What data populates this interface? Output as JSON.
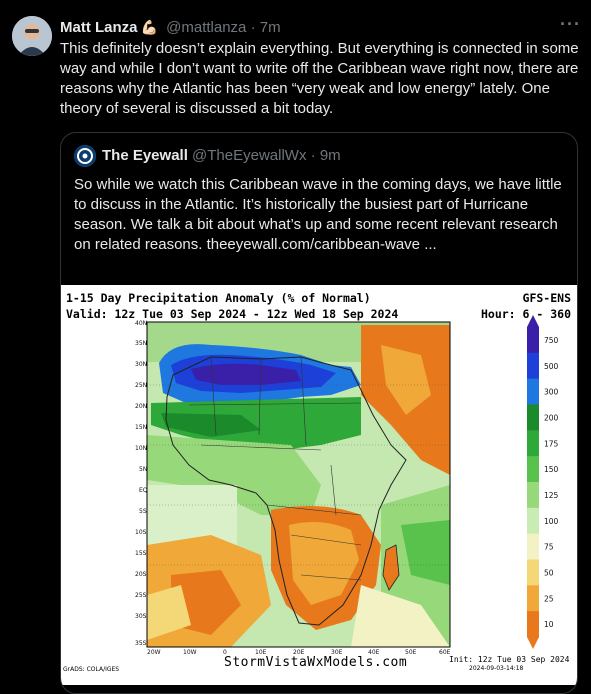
{
  "tweet": {
    "author": "Matt Lanza",
    "emoji": "💪🏻",
    "handle": "@mattlanza",
    "separator": "·",
    "time": "7m",
    "more_icon": "more-horizontal-icon",
    "text": "This definitely doesn’t explain everything. But everything is connected in some way and while I don’t want to write off the Caribbean wave right now, there are reasons why the Atlantic has been “very weak and low energy” lately. One theory of several is discussed a bit today."
  },
  "quote": {
    "author": "The Eyewall",
    "handle": "@TheEyewallWx",
    "separator": "·",
    "time": "9m",
    "text": "So while we watch this Caribbean wave in the coming days, we have little to discuss in the Atlantic. It’s historically the busiest part of Hurricane season. We talk a bit about what’s up and some recent relevant research on related reasons. theeyewall.com/caribbean-wave ..."
  },
  "map": {
    "title": "1-15 Day Precipitation Anomaly (% of Normal)",
    "valid": "Valid: 12z Tue 03 Sep 2024 - 12z Wed 18 Sep 2024",
    "model": "GFS-ENS",
    "hour": "Hour: 6 - 360",
    "footer": "StormVistaWxModels.com",
    "credit": "GrADS: COLA/IGES",
    "init": "Init: 12z Tue 03 Sep 2024",
    "stamp": "2024-09-03-14:18",
    "lat_labels": [
      "40N",
      "35N",
      "30N",
      "25N",
      "20N",
      "15N",
      "10N",
      "5N",
      "EQ",
      "5S",
      "10S",
      "15S",
      "20S",
      "25S",
      "30S",
      "35S"
    ],
    "lon_labels": [
      "20W",
      "10W",
      "0",
      "10E",
      "20E",
      "30E",
      "40E",
      "50E",
      "60E"
    ],
    "scale_labels": [
      "750",
      "500",
      "300",
      "200",
      "175",
      "150",
      "125",
      "100",
      "75",
      "50",
      "25",
      "10"
    ],
    "scale_colors": [
      "#3a1fa8",
      "#1c40d8",
      "#1e78e0",
      "#1a8a2a",
      "#2ea838",
      "#58c24c",
      "#96d87a",
      "#c8ecb4",
      "#f2f2c4",
      "#f4d878",
      "#f0a838",
      "#e8781c"
    ]
  }
}
